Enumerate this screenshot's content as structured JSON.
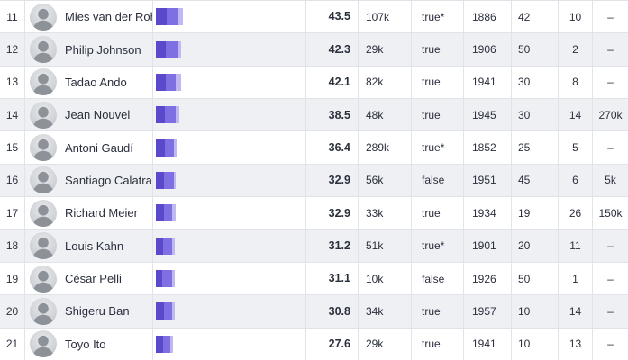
{
  "colors": {
    "bar_palette": [
      "#5a49cb",
      "#7e70e2",
      "#c0b8f2"
    ],
    "row_alt": "#eef0f3",
    "border": "#e0e3e8",
    "text": "#2a2f3c"
  },
  "rows": [
    {
      "rank": "11",
      "name": "Mies van der Rohe",
      "bar": [
        12,
        13,
        5
      ],
      "value": "43.5",
      "count": "107k",
      "flag": "true*",
      "year": "1886",
      "num_a": "42",
      "num_b": "10",
      "extra": "–"
    },
    {
      "rank": "12",
      "name": "Philip Johnson",
      "bar": [
        11,
        14,
        3
      ],
      "value": "42.3",
      "count": "29k",
      "flag": "true",
      "year": "1906",
      "num_a": "50",
      "num_b": "2",
      "extra": "–"
    },
    {
      "rank": "13",
      "name": "Tadao Ando",
      "bar": [
        11,
        11,
        6
      ],
      "value": "42.1",
      "count": "82k",
      "flag": "true",
      "year": "1941",
      "num_a": "30",
      "num_b": "8",
      "extra": "–"
    },
    {
      "rank": "14",
      "name": "Jean Nouvel",
      "bar": [
        10,
        12,
        4
      ],
      "value": "38.5",
      "count": "48k",
      "flag": "true",
      "year": "1945",
      "num_a": "30",
      "num_b": "14",
      "extra": "270k"
    },
    {
      "rank": "15",
      "name": "Antoni Gaudí",
      "bar": [
        10,
        10,
        4
      ],
      "value": "36.4",
      "count": "289k",
      "flag": "true*",
      "year": "1852",
      "num_a": "25",
      "num_b": "5",
      "extra": "–"
    },
    {
      "rank": "16",
      "name": "Santiago Calatrava",
      "bar": [
        9,
        11,
        2
      ],
      "value": "32.9",
      "count": "56k",
      "flag": "false",
      "year": "1951",
      "num_a": "45",
      "num_b": "6",
      "extra": "5k"
    },
    {
      "rank": "17",
      "name": "Richard Meier",
      "bar": [
        9,
        9,
        4
      ],
      "value": "32.9",
      "count": "33k",
      "flag": "true",
      "year": "1934",
      "num_a": "19",
      "num_b": "26",
      "extra": "150k"
    },
    {
      "rank": "18",
      "name": "Louis Kahn",
      "bar": [
        8,
        10,
        3
      ],
      "value": "31.2",
      "count": "51k",
      "flag": "true*",
      "year": "1901",
      "num_a": "20",
      "num_b": "11",
      "extra": "–"
    },
    {
      "rank": "19",
      "name": "César Pelli",
      "bar": [
        7,
        11,
        3
      ],
      "value": "31.1",
      "count": "10k",
      "flag": "false",
      "year": "1926",
      "num_a": "50",
      "num_b": "1",
      "extra": "–"
    },
    {
      "rank": "20",
      "name": "Shigeru Ban",
      "bar": [
        9,
        9,
        3
      ],
      "value": "30.8",
      "count": "34k",
      "flag": "true",
      "year": "1957",
      "num_a": "10",
      "num_b": "14",
      "extra": "–"
    },
    {
      "rank": "21",
      "name": "Toyo Ito",
      "bar": [
        8,
        8,
        3
      ],
      "value": "27.6",
      "count": "29k",
      "flag": "true",
      "year": "1941",
      "num_a": "10",
      "num_b": "13",
      "extra": "–"
    }
  ]
}
